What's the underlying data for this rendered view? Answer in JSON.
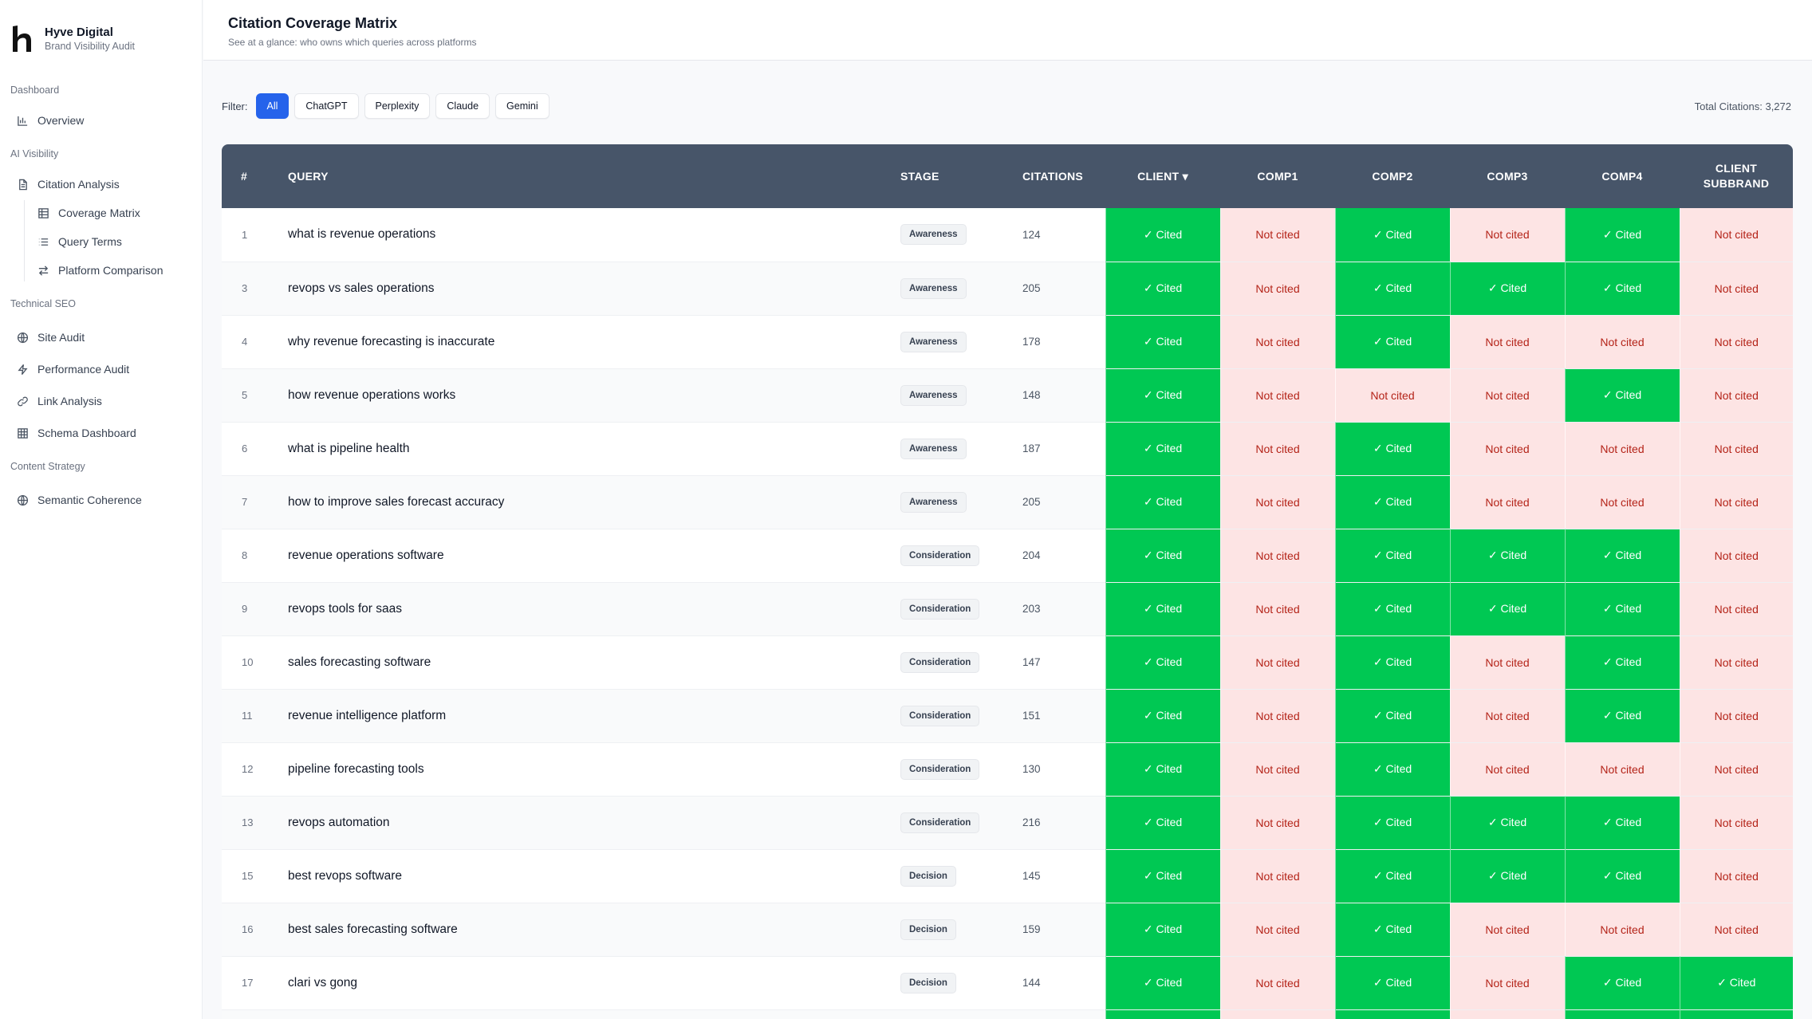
{
  "brand": {
    "name": "Hyve Digital",
    "subtitle": "Brand Visibility Audit"
  },
  "sidebar": {
    "sections": [
      {
        "title": "Dashboard",
        "items": [
          {
            "label": "Overview",
            "icon": "bar-chart-icon"
          }
        ]
      },
      {
        "title": "AI Visibility",
        "items": [
          {
            "label": "Citation Analysis",
            "icon": "document-icon"
          },
          {
            "label": "Coverage Matrix",
            "icon": "grid-icon"
          },
          {
            "label": "Query Terms",
            "icon": "list-icon"
          },
          {
            "label": "Platform Comparison",
            "icon": "arrows-icon"
          }
        ]
      },
      {
        "title": "Technical SEO",
        "items": [
          {
            "label": "Site Audit",
            "icon": "globe-icon"
          },
          {
            "label": "Performance Audit",
            "icon": "lightning-icon"
          },
          {
            "label": "Link Analysis",
            "icon": "link-icon"
          },
          {
            "label": "Schema Dashboard",
            "icon": "grid-icon"
          }
        ]
      },
      {
        "title": "Content Strategy",
        "items": [
          {
            "label": "Semantic Coherence",
            "icon": "globe-icon"
          }
        ]
      }
    ]
  },
  "header": {
    "title": "Citation Coverage Matrix",
    "subtitle": "See at a glance: who owns which queries across platforms"
  },
  "filter": {
    "label": "Filter:",
    "options": [
      "All",
      "ChatGPT",
      "Perplexity",
      "Claude",
      "Gemini"
    ],
    "selected": "All",
    "total": "Total Citations: 3,272"
  },
  "table": {
    "columns": [
      "#",
      "QUERY",
      "STAGE",
      "CITATIONS",
      "CLIENT ▾",
      "COMP1",
      "COMP2",
      "COMP3",
      "COMP4",
      "CLIENT SUBBRAND"
    ],
    "cited_label": "✓ Cited",
    "not_cited_label": "Not cited",
    "rows": [
      {
        "num": "1",
        "query": "what is revenue operations",
        "stage": "Awareness",
        "citations": "124",
        "coverage": [
          1,
          0,
          1,
          0,
          1,
          0
        ]
      },
      {
        "num": "3",
        "query": "revops vs sales operations",
        "stage": "Awareness",
        "citations": "205",
        "coverage": [
          1,
          0,
          1,
          1,
          1,
          0
        ]
      },
      {
        "num": "4",
        "query": "why revenue forecasting is inaccurate",
        "stage": "Awareness",
        "citations": "178",
        "coverage": [
          1,
          0,
          1,
          0,
          0,
          0
        ]
      },
      {
        "num": "5",
        "query": "how revenue operations works",
        "stage": "Awareness",
        "citations": "148",
        "coverage": [
          1,
          0,
          0,
          0,
          1,
          0
        ]
      },
      {
        "num": "6",
        "query": "what is pipeline health",
        "stage": "Awareness",
        "citations": "187",
        "coverage": [
          1,
          0,
          1,
          0,
          0,
          0
        ]
      },
      {
        "num": "7",
        "query": "how to improve sales forecast accuracy",
        "stage": "Awareness",
        "citations": "205",
        "coverage": [
          1,
          0,
          1,
          0,
          0,
          0
        ]
      },
      {
        "num": "8",
        "query": "revenue operations software",
        "stage": "Consideration",
        "citations": "204",
        "coverage": [
          1,
          0,
          1,
          1,
          1,
          0
        ]
      },
      {
        "num": "9",
        "query": "revops tools for saas",
        "stage": "Consideration",
        "citations": "203",
        "coverage": [
          1,
          0,
          1,
          1,
          1,
          0
        ]
      },
      {
        "num": "10",
        "query": "sales forecasting software",
        "stage": "Consideration",
        "citations": "147",
        "coverage": [
          1,
          0,
          1,
          0,
          1,
          0
        ]
      },
      {
        "num": "11",
        "query": "revenue intelligence platform",
        "stage": "Consideration",
        "citations": "151",
        "coverage": [
          1,
          0,
          1,
          0,
          1,
          0
        ]
      },
      {
        "num": "12",
        "query": "pipeline forecasting tools",
        "stage": "Consideration",
        "citations": "130",
        "coverage": [
          1,
          0,
          1,
          0,
          0,
          0
        ]
      },
      {
        "num": "13",
        "query": "revops automation",
        "stage": "Consideration",
        "citations": "216",
        "coverage": [
          1,
          0,
          1,
          1,
          1,
          0
        ]
      },
      {
        "num": "15",
        "query": "best revops software",
        "stage": "Decision",
        "citations": "145",
        "coverage": [
          1,
          0,
          1,
          1,
          1,
          0
        ]
      },
      {
        "num": "16",
        "query": "best sales forecasting software",
        "stage": "Decision",
        "citations": "159",
        "coverage": [
          1,
          0,
          1,
          0,
          0,
          0
        ]
      },
      {
        "num": "17",
        "query": "clari vs gong",
        "stage": "Decision",
        "citations": "144",
        "coverage": [
          1,
          0,
          1,
          0,
          1,
          1
        ]
      },
      {
        "num": "",
        "query": "",
        "stage": "",
        "citations": "",
        "coverage": [
          1,
          0,
          1,
          0,
          1,
          1
        ]
      }
    ]
  },
  "colors": {
    "header": "#475569",
    "cited": "#00c853",
    "not_cited_bg": "#fde4e4",
    "not_cited_text": "#b42318",
    "accent": "#2563eb"
  }
}
